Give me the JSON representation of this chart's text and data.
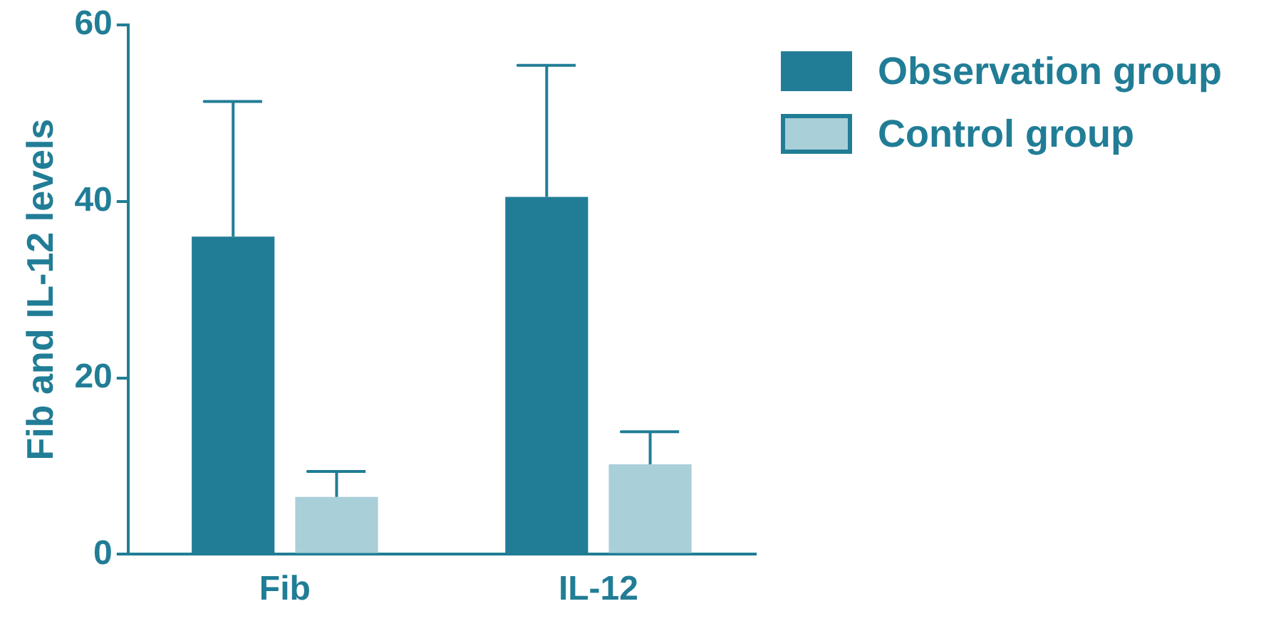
{
  "chart_data": {
    "type": "bar",
    "ylabel": "Fib and IL-12 levels",
    "categories": [
      "Fib",
      "IL-12"
    ],
    "series": [
      {
        "name": "Observation group",
        "color": "#217d96",
        "values": [
          36,
          40.5
        ],
        "errors": [
          [
            36,
            51.3
          ],
          [
            40.5,
            55.4
          ]
        ]
      },
      {
        "name": "Control group",
        "color": "#a9cfd9",
        "values": [
          6.5,
          10.2
        ],
        "errors": [
          [
            6.5,
            9.4
          ],
          [
            10.2,
            13.9
          ]
        ]
      }
    ],
    "ylim": [
      0,
      60
    ],
    "yticks": [
      0,
      20,
      40,
      60
    ],
    "grid": false,
    "legend": "top right"
  }
}
